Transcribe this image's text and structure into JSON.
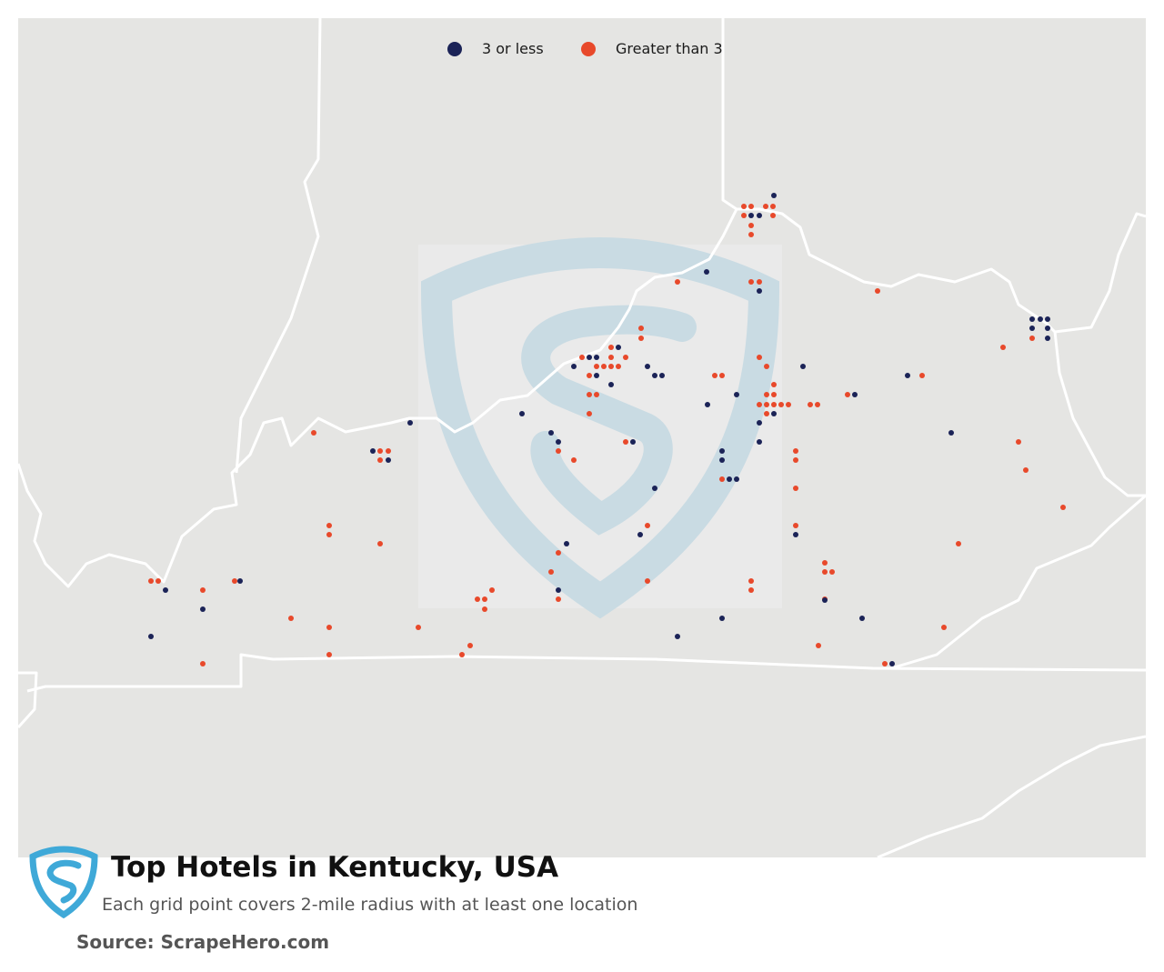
{
  "legend": {
    "items": [
      {
        "label": "3 or less",
        "color": "#1b2357"
      },
      {
        "label": "Greater than 3",
        "color": "#e8492b"
      }
    ]
  },
  "footer": {
    "title": "Top Hotels in Kentucky, USA",
    "subtitle": "Each grid point covers 2-mile radius with at least one location",
    "source": "Source: ScrapeHero.com"
  },
  "colors": {
    "land": "#e5e5e3",
    "border": "#ffffff",
    "watermark": "#c9dbe3",
    "logo": "#3fa9d8",
    "low": "#1b2357",
    "high": "#e8492b"
  }
}
